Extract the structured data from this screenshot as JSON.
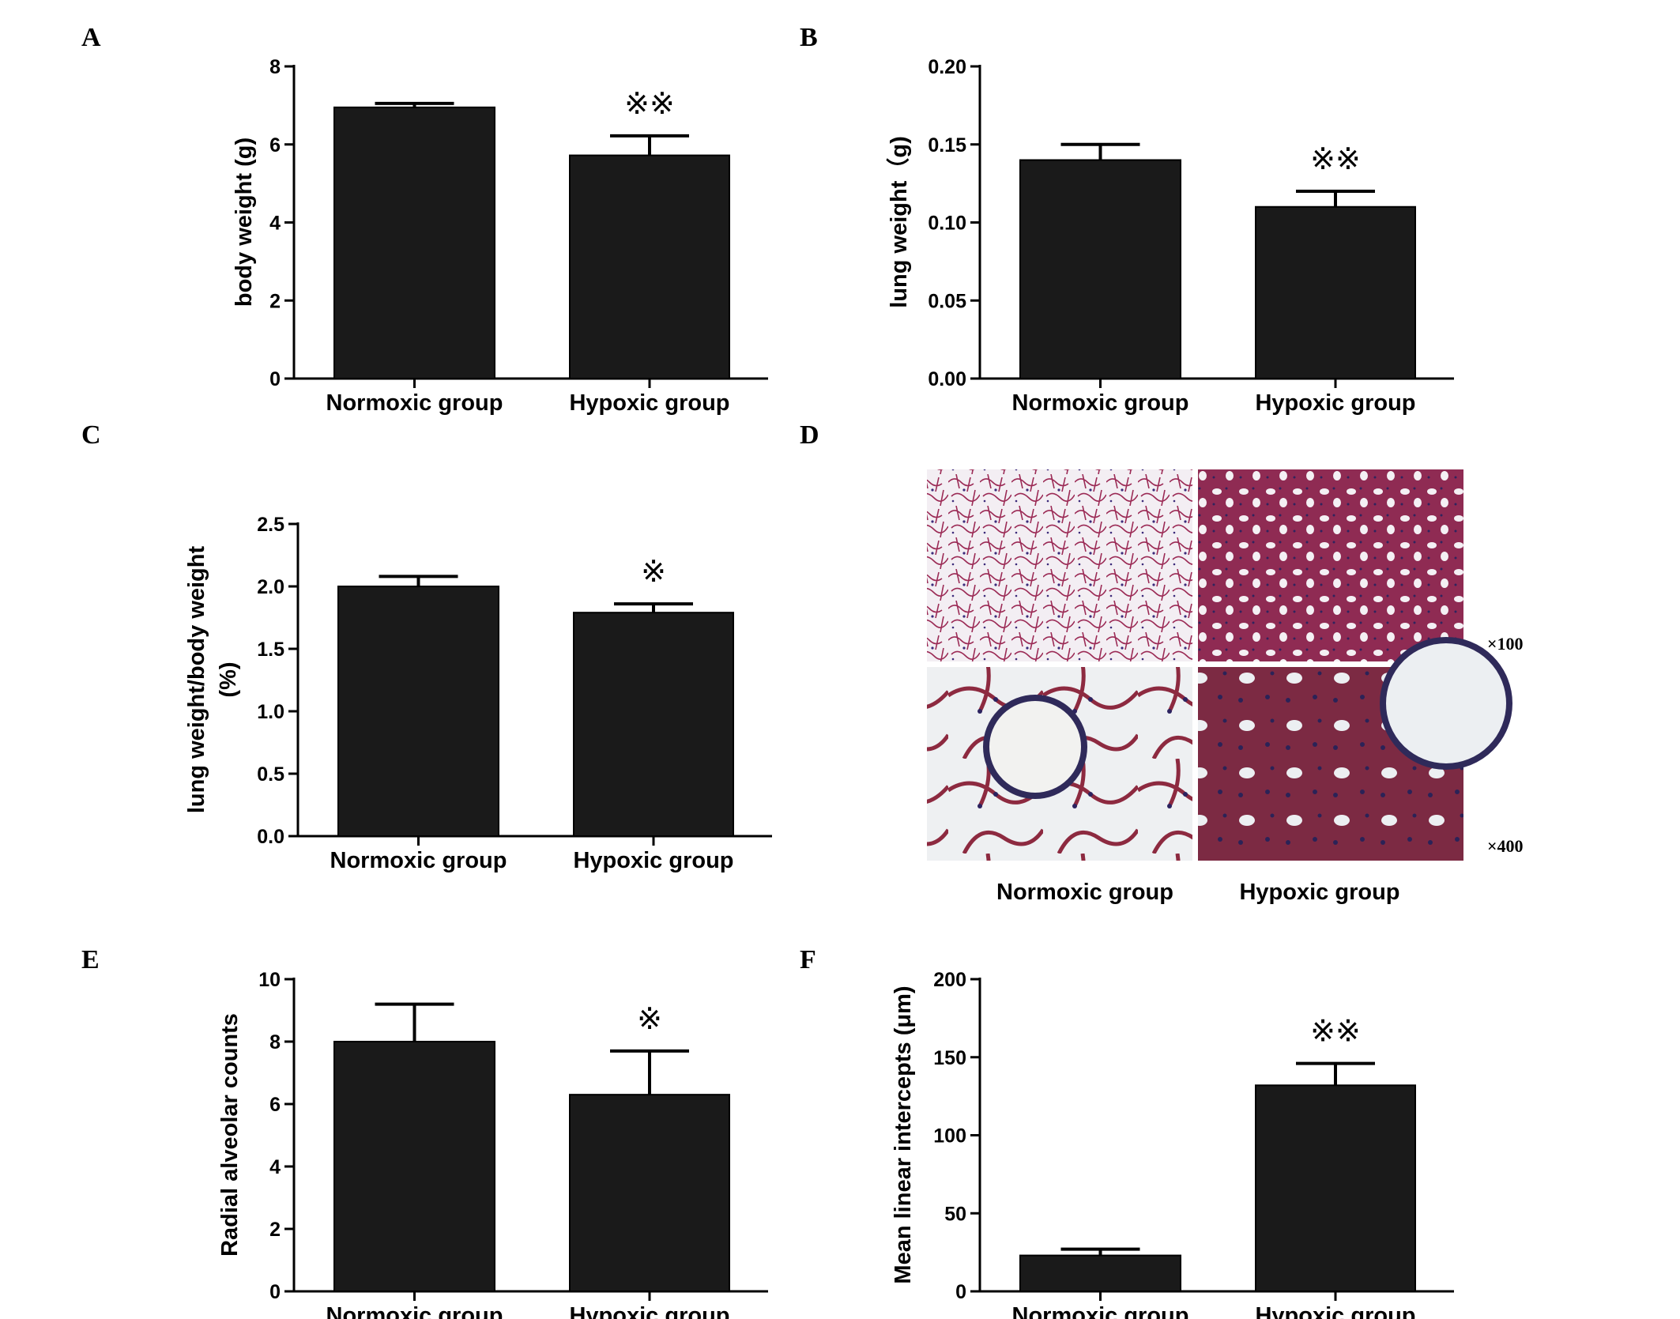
{
  "figure": {
    "panels": [
      "A",
      "B",
      "C",
      "D",
      "E",
      "F"
    ]
  },
  "chart_data": [
    {
      "panel": "A",
      "type": "bar",
      "categories": [
        "Normoxic group",
        "Hypoxic group"
      ],
      "values": [
        6.95,
        5.72
      ],
      "errors": [
        0.1,
        0.5
      ],
      "significance": [
        "",
        "※※"
      ],
      "ylabel": "body weight (g)",
      "ylim": [
        0,
        8
      ],
      "yticks": [
        "0",
        "2",
        "4",
        "6",
        "8"
      ],
      "ytick_values": [
        0,
        2,
        4,
        6,
        8
      ]
    },
    {
      "panel": "B",
      "type": "bar",
      "categories": [
        "Normoxic group",
        "Hypoxic group"
      ],
      "values": [
        0.14,
        0.11
      ],
      "errors": [
        0.01,
        0.01
      ],
      "significance": [
        "",
        "※※"
      ],
      "ylabel": "lung weight（g)",
      "ylim": [
        0,
        0.2
      ],
      "yticks": [
        "0.00",
        "0.05",
        "0.10",
        "0.15",
        "0.20"
      ],
      "ytick_values": [
        0,
        0.05,
        0.1,
        0.15,
        0.2
      ]
    },
    {
      "panel": "C",
      "type": "bar",
      "categories": [
        "Normoxic group",
        "Hypoxic group"
      ],
      "values": [
        2.0,
        1.79
      ],
      "errors": [
        0.08,
        0.07
      ],
      "significance": [
        "",
        "※"
      ],
      "ylabel": "lung weight/body weight",
      "ylabel2": "(%)",
      "ylim": [
        0,
        2.5
      ],
      "yticks": [
        "0.0",
        "0.5",
        "1.0",
        "1.5",
        "2.0",
        "2.5"
      ],
      "ytick_values": [
        0,
        0.5,
        1.0,
        1.5,
        2.0,
        2.5
      ]
    },
    {
      "panel": "E",
      "type": "bar",
      "categories": [
        "Normoxic group",
        "Hypoxic group"
      ],
      "values": [
        8.0,
        6.3
      ],
      "errors": [
        1.2,
        1.4
      ],
      "significance": [
        "",
        "※"
      ],
      "ylabel": "Radial alveolar counts",
      "ylim": [
        0,
        10
      ],
      "yticks": [
        "0",
        "2",
        "4",
        "6",
        "8",
        "10"
      ],
      "ytick_values": [
        0,
        2,
        4,
        6,
        8,
        10
      ]
    },
    {
      "panel": "F",
      "type": "bar",
      "categories": [
        "Normoxic group",
        "Hypoxic group"
      ],
      "values": [
        23,
        132
      ],
      "errors": [
        4,
        14
      ],
      "significance": [
        "",
        "※※"
      ],
      "ylabel": "Mean linear intercepts (μm)",
      "ylim": [
        0,
        200
      ],
      "yticks": [
        "0",
        "50",
        "100",
        "150",
        "200"
      ],
      "ytick_values": [
        0,
        50,
        100,
        150,
        200
      ]
    }
  ],
  "histology": {
    "panel": "D",
    "magnification_top": "×100",
    "magnification_bottom": "×400",
    "columns": [
      "Normoxic group",
      "Hypoxic group"
    ]
  }
}
